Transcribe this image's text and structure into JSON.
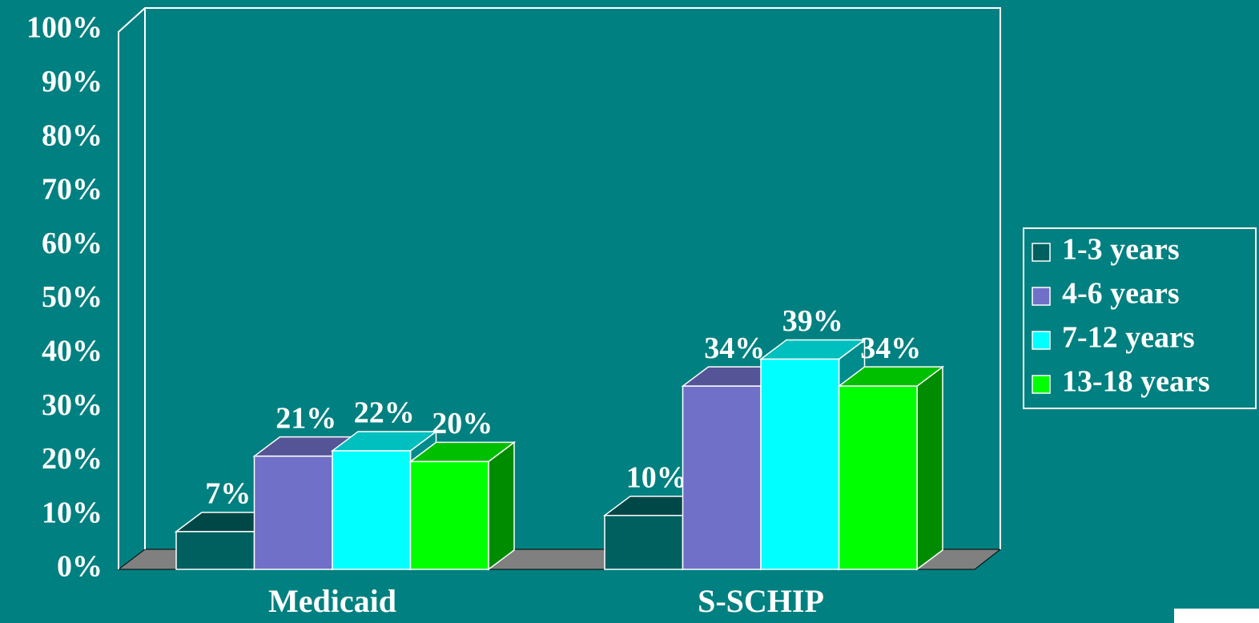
{
  "chart_data": {
    "type": "bar3d",
    "categories": [
      "Medicaid",
      "S-SCHIP"
    ],
    "series": [
      {
        "name": "1-3 years",
        "color": "#006060",
        "values": [
          7,
          10
        ],
        "value_labels": [
          "7%",
          "10%"
        ]
      },
      {
        "name": "4-6 years",
        "color": "#7070c8",
        "values": [
          21,
          34
        ],
        "value_labels": [
          "21%",
          "34%"
        ]
      },
      {
        "name": "7-12 years",
        "color": "#00ffff",
        "values": [
          22,
          39
        ],
        "value_labels": [
          "22%",
          "39%"
        ]
      },
      {
        "name": "13-18 years",
        "color": "#00ff00",
        "values": [
          20,
          34
        ],
        "value_labels": [
          "20%",
          "34%"
        ]
      }
    ],
    "ylim": [
      0,
      100
    ],
    "yticks": [
      {
        "value": 0,
        "label": "0%"
      },
      {
        "value": 10,
        "label": "10%"
      },
      {
        "value": 20,
        "label": "20%"
      },
      {
        "value": 30,
        "label": "30%"
      },
      {
        "value": 40,
        "label": "40%"
      },
      {
        "value": 50,
        "label": "50%"
      },
      {
        "value": 60,
        "label": "60%"
      },
      {
        "value": 70,
        "label": "70%"
      },
      {
        "value": 80,
        "label": "80%"
      },
      {
        "value": 90,
        "label": "90%"
      },
      {
        "value": 100,
        "label": "100%"
      }
    ],
    "legend": "right"
  }
}
